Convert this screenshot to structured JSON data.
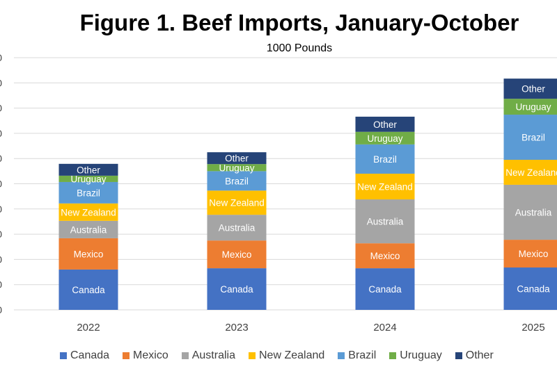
{
  "chart_data": {
    "type": "bar",
    "stacked": true,
    "title": "Figure 1. Beef Imports, January-October",
    "subtitle": "1000 Pounds",
    "ylabel": "1000 Pounds",
    "ylim": [
      0,
      10
    ],
    "ytick_labels": [
      "0",
      "0",
      "0",
      "0",
      "0",
      "0",
      "0",
      "0",
      "0",
      "0",
      "0"
    ],
    "grid": true,
    "legend_position": "bottom",
    "categories": [
      "2022",
      "2023",
      "2024",
      "2025"
    ],
    "series": [
      {
        "name": "Canada",
        "color": "#4472C4",
        "values": [
          1.6,
          1.65,
          1.65,
          1.68
        ]
      },
      {
        "name": "Mexico",
        "color": "#ED7D31",
        "values": [
          1.24,
          1.1,
          0.99,
          1.1
        ]
      },
      {
        "name": "Australia",
        "color": "#A5A5A5",
        "values": [
          0.69,
          1.02,
          1.74,
          2.18
        ]
      },
      {
        "name": "New Zealand",
        "color": "#FFC000",
        "values": [
          0.69,
          0.96,
          1.02,
          0.99
        ]
      },
      {
        "name": "Brazil",
        "color": "#5B9BD5",
        "values": [
          0.85,
          0.77,
          1.16,
          1.79
        ]
      },
      {
        "name": "Uruguay",
        "color": "#70AD47",
        "values": [
          0.25,
          0.28,
          0.5,
          0.63
        ]
      },
      {
        "name": "Other",
        "color": "#264478",
        "values": [
          0.47,
          0.47,
          0.6,
          0.8
        ]
      }
    ]
  }
}
